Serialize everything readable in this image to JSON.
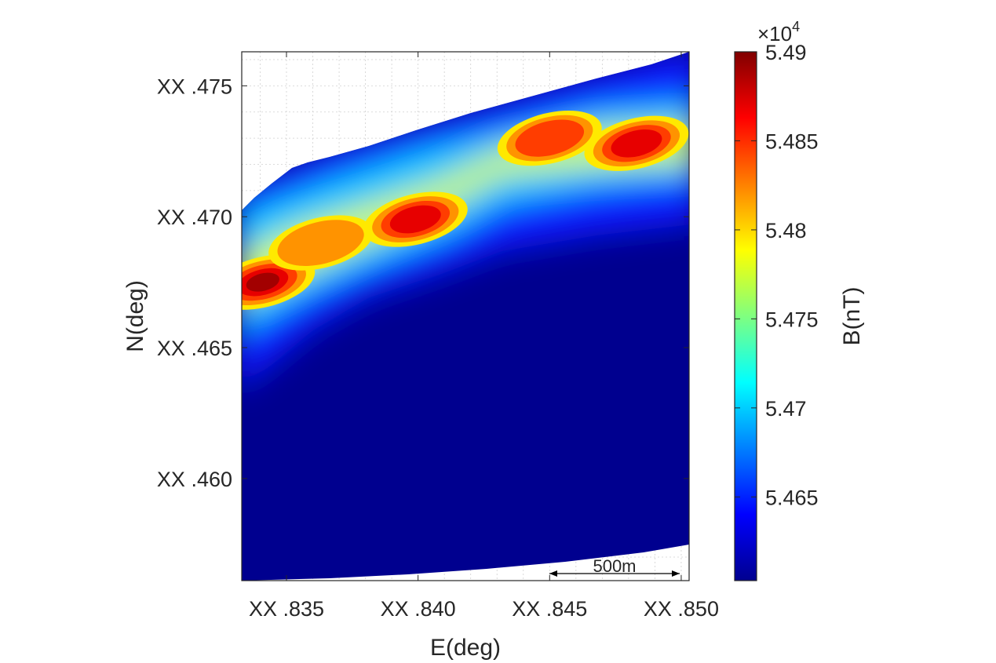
{
  "chart_data": {
    "type": "heatmap",
    "subtype": "filled-contour",
    "xlabel": "E(deg)",
    "ylabel": "N(deg)",
    "x_ticks": [
      "XX .835",
      "XX .840",
      "XX .845",
      "XX .850"
    ],
    "y_ticks": [
      "XX .475",
      "XX .470",
      "XX .465",
      "XX .460"
    ],
    "xlim": [
      0.8333,
      0.8503
    ],
    "ylim": [
      0.4561,
      0.4763
    ],
    "grid": "on",
    "colormap": "jet",
    "colorbar": {
      "label": "B(nT)",
      "exponent_label": "×10",
      "exponent_power": "4",
      "ticks": [
        "5.49",
        "5.485",
        "5.48",
        "5.475",
        "5.47",
        "5.465"
      ],
      "tick_values": [
        5.49,
        5.485,
        5.48,
        5.475,
        5.47,
        5.465
      ],
      "range": [
        5.4603,
        5.49
      ]
    },
    "peaks": [
      {
        "x": 0.8341,
        "y": 0.4675,
        "value": 5.489
      },
      {
        "x": 0.8363,
        "y": 0.469,
        "value": 5.483
      },
      {
        "x": 0.8399,
        "y": 0.4699,
        "value": 5.488
      },
      {
        "x": 0.845,
        "y": 0.473,
        "value": 5.486
      },
      {
        "x": 0.8483,
        "y": 0.4728,
        "value": 5.488
      }
    ],
    "background_value": 5.4605,
    "scale_bar": {
      "label": "500m"
    }
  }
}
